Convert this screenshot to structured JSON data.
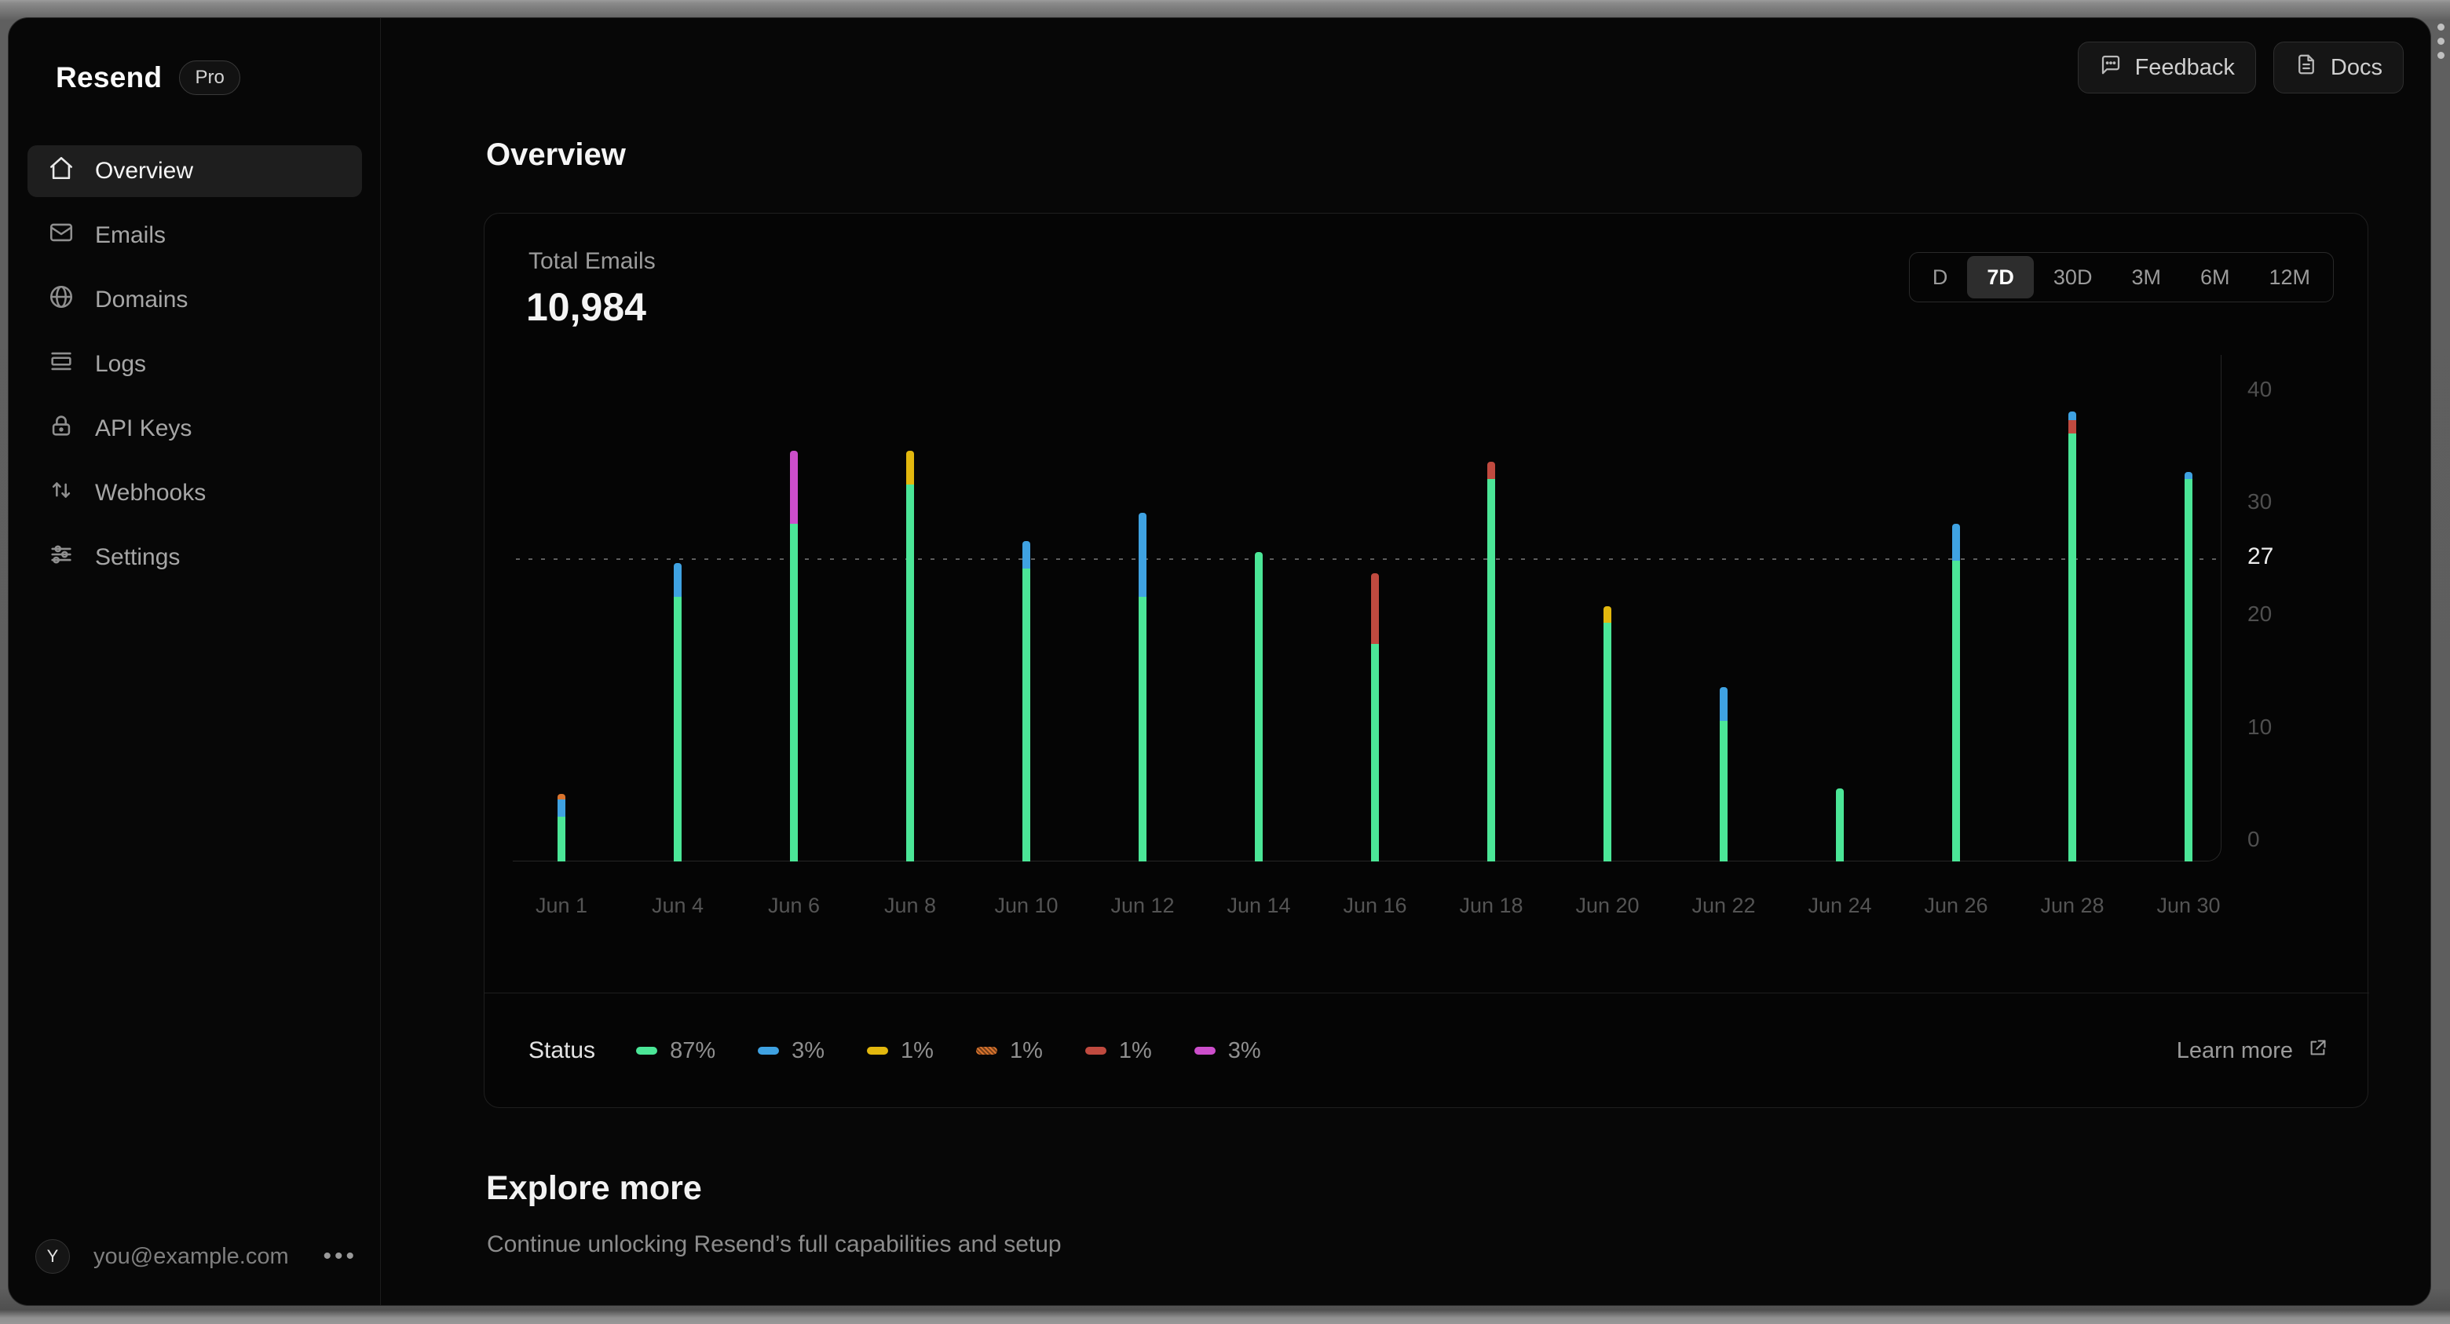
{
  "brand": {
    "name": "Resend",
    "badge": "Pro"
  },
  "sidebar": {
    "items": [
      {
        "label": "Overview",
        "icon": "home-icon",
        "active": true
      },
      {
        "label": "Emails",
        "icon": "mail-icon",
        "active": false
      },
      {
        "label": "Domains",
        "icon": "globe-icon",
        "active": false
      },
      {
        "label": "Logs",
        "icon": "logs-icon",
        "active": false
      },
      {
        "label": "API Keys",
        "icon": "lock-icon",
        "active": false
      },
      {
        "label": "Webhooks",
        "icon": "arrows-up-down-icon",
        "active": false
      },
      {
        "label": "Settings",
        "icon": "sliders-icon",
        "active": false
      }
    ],
    "user": {
      "avatar_initial": "Y",
      "email": "you@example.com",
      "menu_icon": "ellipsis-icon"
    }
  },
  "topbar": {
    "buttons": [
      {
        "label": "Feedback",
        "icon": "speech-bubble-icon"
      },
      {
        "label": "Docs",
        "icon": "document-icon"
      }
    ]
  },
  "page": {
    "title": "Overview"
  },
  "card": {
    "metric_label": "Total Emails",
    "metric_value": "10,984",
    "range_options": [
      {
        "label": "D",
        "active": false
      },
      {
        "label": "7D",
        "active": true
      },
      {
        "label": "30D",
        "active": false
      },
      {
        "label": "3M",
        "active": false
      },
      {
        "label": "6M",
        "active": false
      },
      {
        "label": "12M",
        "active": false
      }
    ],
    "legend": {
      "title": "Status",
      "items": [
        {
          "color": "#4be697",
          "pattern": false,
          "value": "87%"
        },
        {
          "color": "#3fa2e2",
          "pattern": false,
          "value": "3%"
        },
        {
          "color": "#e3b80e",
          "pattern": false,
          "value": "1%"
        },
        {
          "color": "#d9742e",
          "pattern": true,
          "value": "1%"
        },
        {
          "color": "#c04a3f",
          "pattern": false,
          "value": "1%"
        },
        {
          "color": "#cc4ecb",
          "pattern": false,
          "value": "3%"
        }
      ]
    },
    "learn_more": {
      "label": "Learn more",
      "icon": "external-link-icon"
    }
  },
  "explore": {
    "title": "Explore more",
    "subtitle": "Continue unlocking Resend’s full capabilities and setup"
  },
  "chart_data": {
    "type": "bar",
    "stacked": true,
    "title": "Total Emails",
    "xlabel": "",
    "ylabel": "",
    "categories": [
      "Jun 1",
      "Jun 4",
      "Jun 6",
      "Jun 8",
      "Jun 10",
      "Jun 12",
      "Jun 14",
      "Jun 16",
      "Jun 18",
      "Jun 20",
      "Jun 22",
      "Jun 24",
      "Jun 26",
      "Jun 28",
      "Jun 30"
    ],
    "series": [
      {
        "name": "green",
        "color": "#4be697",
        "values": [
          4,
          23.5,
          30,
          33.5,
          26,
          23.5,
          27.5,
          19.3,
          34,
          21.2,
          12.5,
          6.5,
          26.7,
          38,
          34
        ]
      },
      {
        "name": "magenta",
        "color": "#cc4ecb",
        "values": [
          0,
          0,
          6.5,
          0,
          0,
          0,
          0,
          0,
          0,
          0,
          0,
          0,
          0,
          0,
          0
        ]
      },
      {
        "name": "yellow",
        "color": "#e3b80e",
        "values": [
          0,
          0,
          0,
          3,
          0,
          0,
          0,
          0,
          0,
          1.5,
          0,
          0,
          0,
          0,
          0
        ]
      },
      {
        "name": "red",
        "color": "#c04a3f",
        "values": [
          0,
          0,
          0,
          0,
          0,
          0,
          0,
          6.3,
          1.5,
          0,
          0,
          0,
          0,
          1.2,
          0
        ]
      },
      {
        "name": "blue",
        "color": "#3fa2e2",
        "values": [
          1.5,
          3,
          0,
          0,
          2.5,
          7.5,
          0,
          0,
          0,
          0,
          3,
          0,
          3.3,
          0.8,
          0.6
        ]
      },
      {
        "name": "orange",
        "color": "#d9742e",
        "values": [
          0.5,
          0,
          0,
          0,
          0,
          0,
          0,
          0,
          0,
          0,
          0,
          0,
          0,
          0,
          0
        ]
      }
    ],
    "stack_order": [
      "green",
      "magenta",
      "yellow",
      "red",
      "blue",
      "orange"
    ],
    "ylim": [
      0,
      40
    ],
    "yticks": [
      0,
      10,
      20,
      30,
      40
    ],
    "reference_line": {
      "value": 27,
      "style": "dashed",
      "label": "27"
    },
    "legend_position": "bottom",
    "grid": false
  }
}
